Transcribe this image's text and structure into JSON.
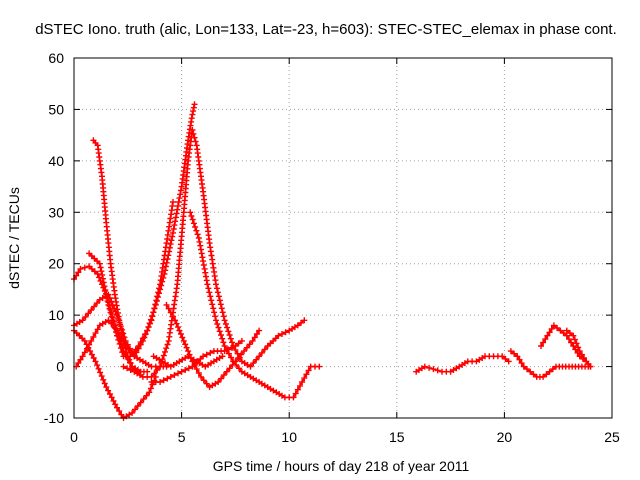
{
  "chart_data": {
    "type": "scatter",
    "title": "dSTEC Iono. truth (alic, Lon=133, Lat=-23, h=603): STEC-STEC_elemax in phase cont.",
    "xlabel": "GPS time / hours of day 218 of year 2011",
    "ylabel": "dSTEC  / TECUs",
    "xlim": [
      0,
      25
    ],
    "ylim": [
      -10,
      60
    ],
    "x_ticks": [
      "0",
      "5",
      "10",
      "15",
      "20",
      "25"
    ],
    "y_ticks": [
      "-10",
      "0",
      "10",
      "20",
      "30",
      "40",
      "50",
      "60"
    ],
    "grid": true,
    "marker": "plus",
    "color": "#ff0000",
    "series": [
      {
        "x": [
          0.0,
          0.3,
          0.7,
          1.1,
          1.5,
          1.9,
          2.3,
          2.7,
          3.1,
          3.4
        ],
        "y": [
          17,
          19,
          19.5,
          18,
          14,
          8,
          3,
          0,
          -1,
          -1
        ]
      },
      {
        "x": [
          0.9,
          1.1,
          1.3,
          1.5,
          1.7,
          1.9,
          2.1,
          2.3,
          2.5,
          2.7,
          3.0
        ],
        "y": [
          44,
          43,
          37,
          28,
          20,
          14,
          9,
          5,
          2,
          0,
          -1
        ]
      },
      {
        "x": [
          0.0,
          0.4,
          0.8,
          1.2,
          1.6,
          2.0,
          2.4,
          2.8,
          3.2,
          3.6,
          4.0,
          4.3
        ],
        "y": [
          8,
          9,
          11,
          13,
          14,
          10,
          5,
          2,
          1,
          0,
          0,
          0
        ]
      },
      {
        "x": [
          0.7,
          1.2,
          1.6,
          2.0,
          2.3,
          2.6,
          3.0,
          3.4,
          3.8,
          4.2,
          4.6,
          5.0,
          5.3,
          5.5,
          5.6
        ],
        "y": [
          22,
          20,
          12,
          6,
          2,
          2,
          4,
          7,
          12,
          18,
          26,
          35,
          44,
          49,
          51
        ]
      },
      {
        "x": [
          0.1,
          0.4,
          0.8,
          1.2,
          1.6,
          2.0,
          2.4,
          2.8,
          3.2,
          3.6,
          4.0,
          4.3,
          4.6
        ],
        "y": [
          0,
          2,
          5,
          8,
          9,
          7,
          4,
          2,
          5,
          9,
          16,
          24,
          32
        ]
      },
      {
        "x": [
          0.0,
          0.5,
          1.0,
          1.5,
          2.0,
          2.3,
          2.7,
          3.1,
          3.5,
          3.8
        ],
        "y": [
          7,
          5,
          1,
          -4,
          -8,
          -10,
          -9,
          -7,
          -5,
          -2
        ]
      },
      {
        "x": [
          2.3,
          2.8,
          3.2,
          3.6,
          4.0,
          4.4,
          4.8,
          5.1,
          5.3,
          5.5,
          5.7,
          6.0,
          6.3,
          6.6,
          7.0,
          7.4,
          7.8,
          8.2,
          8.6,
          9.0,
          9.5,
          10.0,
          10.4,
          10.7
        ],
        "y": [
          0,
          -1,
          -2,
          -2,
          0,
          5,
          16,
          30,
          40,
          46,
          43,
          34,
          24,
          16,
          9,
          4,
          1,
          0,
          2,
          4,
          6,
          7,
          8,
          9
        ]
      },
      {
        "x": [
          5.4,
          5.8,
          6.2,
          6.6,
          7.0,
          7.4,
          7.8,
          8.2,
          8.6,
          9.0,
          9.4,
          9.8,
          10.2,
          10.6,
          11.0,
          11.4
        ],
        "y": [
          30,
          25,
          16,
          9,
          4,
          1,
          -1,
          -2,
          -3,
          -4,
          -5,
          -6,
          -6,
          -3,
          0,
          0
        ]
      },
      {
        "x": [
          3.6,
          4.0,
          4.5,
          5.0,
          5.5,
          6.0,
          6.5,
          7.0,
          7.5,
          7.8
        ],
        "y": [
          -3,
          -3,
          -2,
          -1,
          0,
          2,
          3,
          3,
          4,
          5
        ]
      },
      {
        "x": [
          4.3,
          4.7,
          5.1,
          5.5,
          5.9,
          6.3,
          6.7,
          7.1,
          7.5,
          7.9,
          8.3,
          8.6
        ],
        "y": [
          12,
          9,
          5,
          1,
          -2,
          -4,
          -3,
          -1,
          1,
          3,
          5,
          7
        ]
      },
      {
        "x": [
          3.7,
          4.1,
          4.5,
          4.9,
          5.3,
          5.7,
          6.1,
          6.5,
          6.9
        ],
        "y": [
          2,
          1,
          0,
          1,
          2,
          1,
          0,
          1,
          2
        ]
      },
      {
        "x": [
          15.9,
          16.3,
          16.7,
          17.1,
          17.5,
          17.9,
          18.3,
          18.7,
          19.1,
          19.5,
          19.9,
          20.2
        ],
        "y": [
          -1,
          0,
          -0.5,
          -1,
          -1,
          0,
          1,
          1,
          2,
          2,
          2,
          1
        ]
      },
      {
        "x": [
          20.3,
          20.6,
          20.9,
          21.2,
          21.5,
          21.8,
          22.1,
          22.4,
          22.7,
          23.0,
          23.3,
          23.6,
          23.9
        ],
        "y": [
          3,
          2,
          0,
          -1,
          -2,
          -2,
          -1,
          0,
          0,
          0,
          0,
          0,
          0
        ]
      },
      {
        "x": [
          21.7,
          22.0,
          22.3,
          22.6,
          22.9,
          23.2,
          23.5,
          23.8,
          24.0
        ],
        "y": [
          4,
          6,
          8,
          7,
          6,
          4,
          2,
          1,
          0
        ]
      },
      {
        "x": [
          22.9,
          23.2,
          23.5,
          23.8,
          24.0
        ],
        "y": [
          7,
          6,
          3,
          1,
          0
        ]
      }
    ]
  }
}
